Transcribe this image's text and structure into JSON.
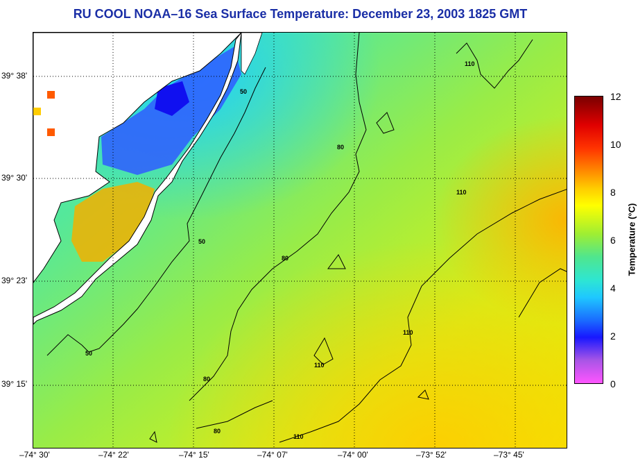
{
  "title": "RU COOL  NOAA–16  Sea Surface Temperature:  December 23, 2003 1825 GMT",
  "lat_ticks": [
    "39° 38'",
    "39° 30'",
    "39° 23'",
    "39° 15'"
  ],
  "lon_ticks": [
    "–74° 30'",
    "–74° 22'",
    "–74° 15'",
    "–74° 07'",
    "–74° 00'",
    "–73° 52'",
    "–73° 45'"
  ],
  "colorbar": {
    "label": "Temperature (°C)",
    "ticks": [
      "12",
      "10",
      "8",
      "6",
      "4",
      "2",
      "0"
    ],
    "range": [
      0,
      12
    ]
  },
  "contour_labels": [
    "50",
    "50",
    "50",
    "80",
    "80",
    "80",
    "80",
    "110",
    "110",
    "110",
    "110",
    "110"
  ],
  "colors": {
    "title": "#1a2ea6",
    "land": "#ffffff",
    "coastline": "#000000"
  }
}
